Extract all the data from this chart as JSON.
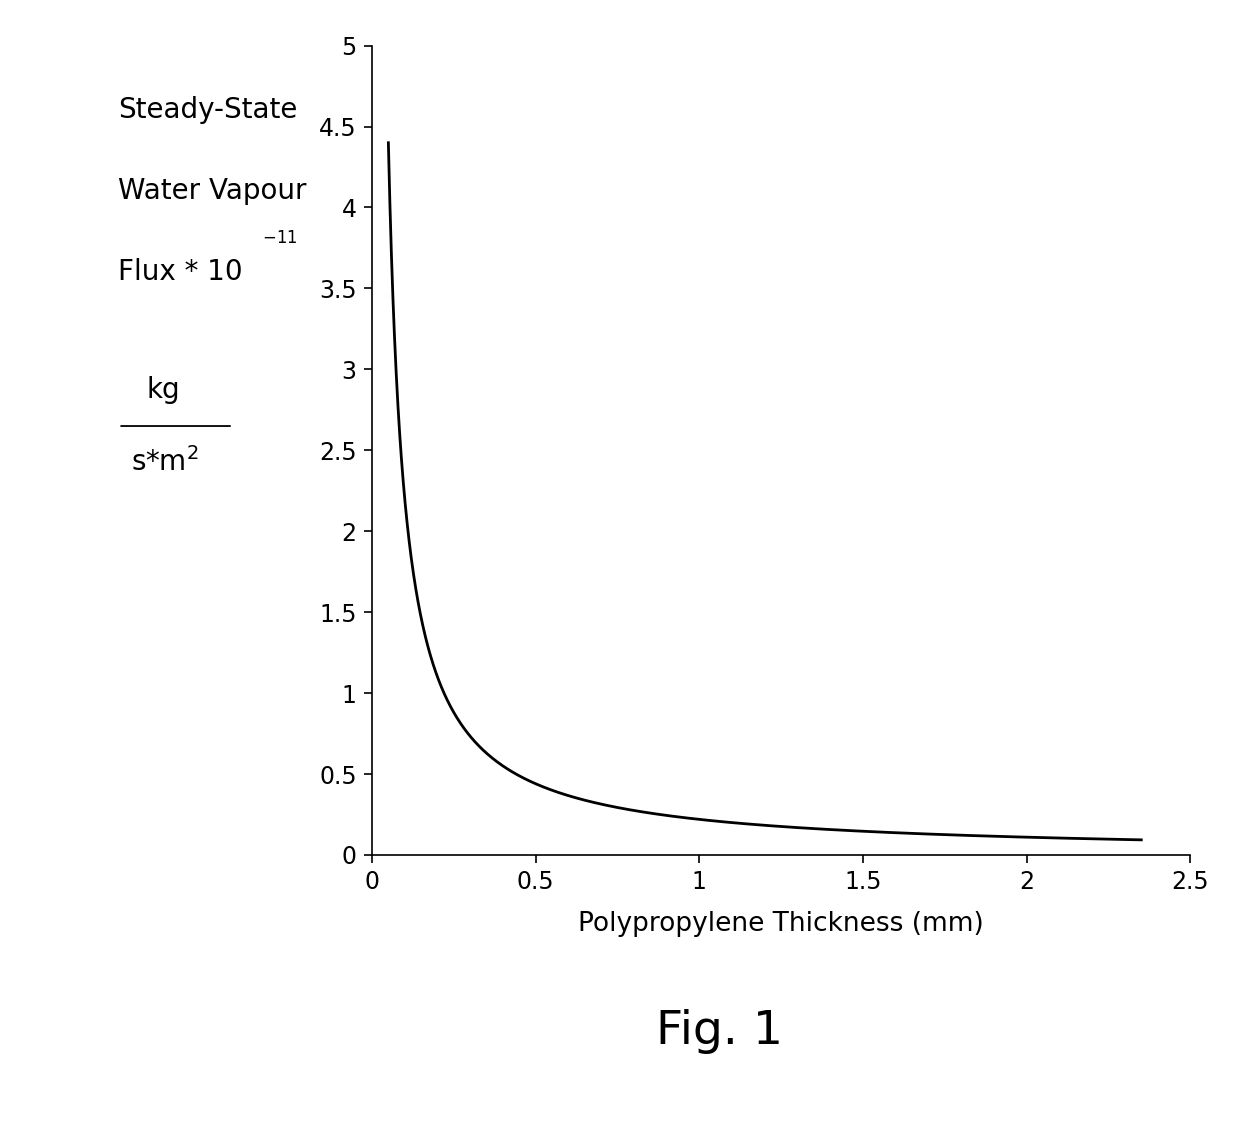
{
  "title": "Fig. 1",
  "xlabel": "Polypropylene Thickness (mm)",
  "ylabel_line1": "Steady-State",
  "ylabel_line2": "Water Vapour",
  "ylabel_line3": "Flux * 10",
  "ylabel_exp": "-11",
  "ylabel_units_num": "kg",
  "ylabel_units_den": "s*m²",
  "x_start": 0.05,
  "x_end": 2.35,
  "xlim": [
    0,
    2.5
  ],
  "ylim": [
    0,
    5
  ],
  "xticks": [
    0,
    0.5,
    1.0,
    1.5,
    2.0,
    2.5
  ],
  "yticks": [
    0,
    0.5,
    1.0,
    1.5,
    2.0,
    2.5,
    3.0,
    3.5,
    4.0,
    4.5,
    5.0
  ],
  "ytick_labels": [
    "0",
    "0.5",
    "1",
    "1.5",
    "2",
    "2.5",
    "3",
    "3.5",
    "4",
    "4.5",
    "5"
  ],
  "xtick_labels": [
    "0",
    "0.5",
    "1",
    "1.5",
    "2",
    "2.5"
  ],
  "line_color": "#000000",
  "background_color": "#ffffff",
  "font_size_ticks": 17,
  "font_size_xlabel": 19,
  "font_size_ylabel": 20,
  "font_size_title": 34,
  "curve_constant": 0.22
}
